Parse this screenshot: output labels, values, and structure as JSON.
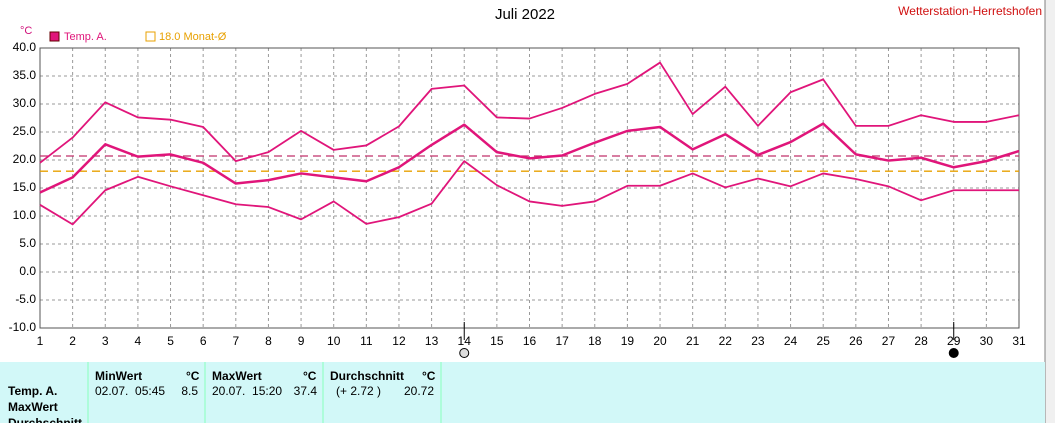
{
  "chart_data": {
    "type": "line",
    "title": "Juli 2022",
    "station": "Wetterstation-Herretshofen",
    "y_unit": "°C",
    "x": [
      1,
      2,
      3,
      4,
      5,
      6,
      7,
      8,
      9,
      10,
      11,
      12,
      13,
      14,
      15,
      16,
      17,
      18,
      19,
      20,
      21,
      22,
      23,
      24,
      25,
      26,
      27,
      28,
      29,
      30,
      31
    ],
    "xlim": [
      1,
      31
    ],
    "xticks": [
      1,
      2,
      3,
      4,
      5,
      6,
      7,
      8,
      9,
      10,
      11,
      12,
      13,
      14,
      15,
      16,
      17,
      18,
      19,
      20,
      21,
      22,
      23,
      24,
      25,
      26,
      27,
      28,
      29,
      30,
      31
    ],
    "ylim": [
      -10,
      40
    ],
    "yticks": [
      {
        "value": -10,
        "label": "-10.0"
      },
      {
        "value": -5,
        "label": "-5.0"
      },
      {
        "value": 0,
        "label": "0.0"
      },
      {
        "value": 5,
        "label": "5.0"
      },
      {
        "value": 10,
        "label": "10.0"
      },
      {
        "value": 15,
        "label": "15.0"
      },
      {
        "value": 20,
        "label": "20.0"
      },
      {
        "value": 25,
        "label": "25.0"
      },
      {
        "value": 30,
        "label": "30.0"
      },
      {
        "value": 35,
        "label": "35.0"
      },
      {
        "value": 40,
        "label": "40.0"
      }
    ],
    "grid": true,
    "series": [
      {
        "name": "Temp. A.",
        "color": "#e0157a",
        "width": 2.5,
        "values": [
          14.2,
          16.9,
          22.8,
          20.6,
          21.0,
          19.5,
          15.8,
          16.4,
          17.6,
          16.9,
          16.2,
          18.7,
          22.7,
          26.3,
          21.4,
          20.3,
          20.8,
          23.1,
          25.2,
          25.9,
          21.9,
          24.6,
          20.9,
          23.2,
          26.5,
          21.0,
          19.9,
          20.4,
          18.7,
          19.8,
          21.6
        ]
      },
      {
        "color": "#e0157a",
        "width": 1.8,
        "values": [
          19.5,
          24.0,
          30.3,
          27.6,
          27.2,
          25.9,
          19.8,
          21.4,
          25.2,
          21.8,
          22.6,
          26.0,
          32.7,
          33.3,
          27.6,
          27.4,
          29.3,
          31.8,
          33.6,
          37.4,
          28.2,
          33.1,
          26.1,
          32.1,
          34.4,
          26.1,
          26.1,
          28.0,
          26.8,
          26.8,
          28.0
        ]
      },
      {
        "color": "#e0157a",
        "width": 1.8,
        "values": [
          12.0,
          8.5,
          14.6,
          17.0,
          15.3,
          13.7,
          12.1,
          11.6,
          9.4,
          12.6,
          8.6,
          9.8,
          12.2,
          19.8,
          15.5,
          12.6,
          11.8,
          12.6,
          15.4,
          15.4,
          17.6,
          15.1,
          16.7,
          15.3,
          17.6,
          16.6,
          15.3,
          12.8,
          14.6,
          14.6,
          14.6
        ]
      }
    ],
    "reference_lines": [
      {
        "value": 20.72,
        "color": "#c0306a"
      },
      {
        "value": 18.0,
        "label": "18.0 Monat-Ø",
        "color": "#e8a000"
      }
    ],
    "moon_phases": [
      {
        "day": 14,
        "phase": "full"
      },
      {
        "day": 29,
        "phase": "new"
      }
    ]
  },
  "table": {
    "header": [
      "MinWert",
      "°C",
      "MaxWert",
      "°C",
      "Durchschnitt",
      "°C"
    ],
    "row_labels": [
      "Temp. A.",
      "MaxWert",
      "Durchschnitt"
    ],
    "rows": [
      [
        "02.07.  05:45",
        "8.5",
        "20.07.  15:20",
        "37.4",
        "(+ 2.72 )",
        "20.72"
      ]
    ]
  }
}
